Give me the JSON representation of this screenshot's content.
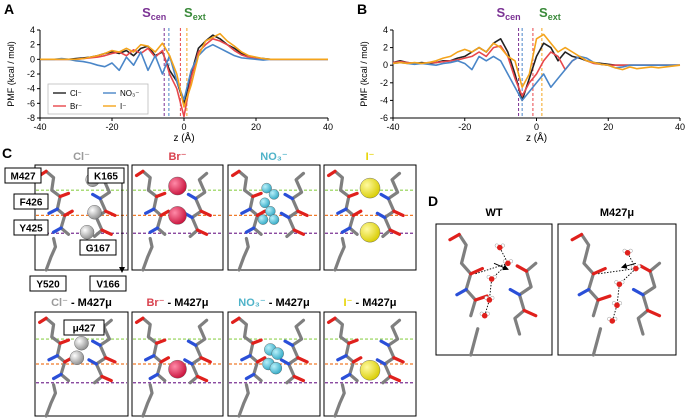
{
  "panel_labels": [
    "A",
    "B",
    "C",
    "D"
  ],
  "chart_data": [
    {
      "type": "line",
      "x": [
        -40,
        -38,
        -36,
        -34,
        -32,
        -30,
        -28,
        -26,
        -24,
        -22,
        -20,
        -18,
        -16,
        -14,
        -12,
        -10,
        -8,
        -6,
        -4,
        -2,
        0,
        2,
        4,
        6,
        8,
        10,
        12,
        14,
        16,
        18,
        20,
        22,
        24,
        26,
        28,
        30,
        32,
        34,
        36,
        38,
        40
      ],
      "xlim": [
        -40,
        40
      ],
      "xticks": [
        -40,
        -20,
        0,
        20,
        40
      ],
      "ylim": [
        -8,
        4
      ],
      "yticks": [
        -8,
        -6,
        -4,
        -2,
        0,
        2,
        4
      ],
      "xlabel": "z (Å)",
      "ylabel": "PMF (kcal / mol)",
      "legend": "lower left",
      "series": [
        {
          "name": "Cl⁻",
          "color": "#222222",
          "values": [
            0,
            0,
            0,
            0,
            0,
            0.1,
            0.2,
            0.3,
            0.5,
            0.8,
            1.0,
            0.8,
            1.2,
            0.5,
            1.5,
            1.8,
            0.5,
            1.0,
            -1.5,
            -3.0,
            -6.0,
            -2.0,
            1.5,
            2.5,
            3.3,
            2.8,
            2.0,
            1.5,
            0.8,
            0.4,
            0.2,
            0.1,
            0,
            0,
            0,
            0,
            0,
            0,
            0,
            0,
            0
          ]
        },
        {
          "name": "Br⁻",
          "color": "#e8474b",
          "values": [
            0,
            0,
            0,
            0,
            0,
            0,
            0.1,
            0.2,
            0.3,
            0.5,
            0.8,
            1.0,
            0.5,
            1.3,
            0.8,
            1.5,
            0.3,
            1.2,
            -2.0,
            -4.0,
            -7.8,
            -2.5,
            1.0,
            2.0,
            2.8,
            2.5,
            2.0,
            1.2,
            0.6,
            0.3,
            0.1,
            0,
            0,
            0,
            0,
            0,
            0,
            0,
            0,
            0,
            0
          ]
        },
        {
          "name": "NO₃⁻",
          "color": "#4a86c8",
          "values": [
            0,
            0,
            0,
            0.1,
            0,
            -0.2,
            -0.3,
            -0.5,
            -0.8,
            -1.0,
            -0.5,
            -1.5,
            0.3,
            -0.8,
            1.0,
            -1.5,
            0.5,
            -2.0,
            0.5,
            -3.0,
            -5.5,
            -1.5,
            0.5,
            1.5,
            2.0,
            1.5,
            1.0,
            0.5,
            0.2,
            0.1,
            0,
            -0.1,
            0,
            0,
            0,
            0,
            0,
            0,
            0,
            0,
            0
          ]
        },
        {
          "name": "I⁻",
          "color": "#f4a41c",
          "values": [
            0,
            0,
            0,
            0,
            0,
            0,
            0.1,
            0.3,
            0.5,
            0.8,
            1.2,
            1.0,
            1.5,
            1.0,
            2.0,
            1.8,
            1.0,
            2.2,
            0.5,
            -2.0,
            -6.5,
            -3.5,
            0.5,
            2.5,
            3.0,
            3.5,
            2.5,
            1.8,
            1.0,
            0.5,
            0.3,
            0.1,
            0,
            0,
            0,
            0,
            0,
            0,
            0,
            0,
            0
          ]
        }
      ],
      "markers": [
        {
          "x": -5.5,
          "color": "#7b3294"
        },
        {
          "x": -4.2,
          "color": "#4a86c8"
        },
        {
          "x": -1,
          "color": "#e8474b"
        },
        {
          "x": 0.8,
          "color": "#f4a41c"
        }
      ],
      "annotations": [
        {
          "text": "S",
          "sub": "cen",
          "color": "#7b3294"
        },
        {
          "text": "S",
          "sub": "ext",
          "color": "#3a8a3a"
        }
      ]
    },
    {
      "type": "line",
      "x": [
        -40,
        -38,
        -36,
        -34,
        -32,
        -30,
        -28,
        -26,
        -24,
        -22,
        -20,
        -18,
        -16,
        -14,
        -12,
        -10,
        -8,
        -6,
        -4,
        -2,
        0,
        2,
        4,
        6,
        8,
        10,
        12,
        14,
        16,
        18,
        20,
        22,
        24,
        26,
        28,
        30,
        32,
        34,
        36,
        38,
        40
      ],
      "xlim": [
        -40,
        40
      ],
      "xticks": [
        -40,
        -20,
        0,
        20,
        40
      ],
      "ylim": [
        -6,
        4
      ],
      "yticks": [
        -6,
        -4,
        -2,
        0,
        2,
        4
      ],
      "xlabel": "z (Å)",
      "ylabel": "PMF (kcal / mol)",
      "series": [
        {
          "color": "#222222",
          "values": [
            0.3,
            0.5,
            0.3,
            0.2,
            0.3,
            0.2,
            0.3,
            0.5,
            0.5,
            0.8,
            1.0,
            1.5,
            2.0,
            1.5,
            2.5,
            3.0,
            1.5,
            -1.0,
            -4.0,
            -1.5,
            1.0,
            2.5,
            2.0,
            0.5,
            1.5,
            1.0,
            0.8,
            0.5,
            0.3,
            0.2,
            0.1,
            0,
            0,
            0,
            0,
            0,
            0,
            0,
            0,
            0,
            0
          ]
        },
        {
          "color": "#e8474b",
          "values": [
            0.3,
            0.4,
            0.3,
            0.2,
            0.2,
            0.3,
            0.3,
            0.4,
            0.5,
            0.6,
            0.8,
            1.0,
            1.5,
            1.0,
            2.0,
            2.2,
            1.0,
            -1.5,
            -3.5,
            -2.0,
            -1.0,
            0.5,
            1.5,
            1.0,
            -0.5,
            0.5,
            1.0,
            0.5,
            0.2,
            0.1,
            0,
            0,
            0,
            0,
            0,
            0,
            0,
            0,
            0,
            0,
            0
          ]
        },
        {
          "color": "#4a86c8",
          "values": [
            0.2,
            0.3,
            0.2,
            0.1,
            0.2,
            0.1,
            0,
            0.2,
            0.3,
            0.5,
            0.2,
            -0.5,
            1.0,
            0.5,
            1.0,
            0.5,
            -1.0,
            -2.5,
            -4.0,
            -3.0,
            -2.0,
            -1.0,
            -2.5,
            -1.5,
            -0.5,
            0.5,
            1.0,
            0.8,
            0.3,
            0.1,
            0,
            -0.3,
            -0.2,
            0,
            0,
            0,
            0,
            0,
            0,
            0,
            0
          ]
        },
        {
          "color": "#f4a41c",
          "values": [
            0.2,
            0.3,
            0.2,
            0.3,
            0.2,
            0.3,
            0.5,
            0.8,
            1.0,
            1.5,
            1.8,
            1.5,
            2.0,
            1.5,
            2.5,
            2.0,
            1.0,
            0.5,
            -2.5,
            -1.0,
            3.0,
            3.5,
            2.5,
            1.5,
            2.0,
            1.5,
            1.0,
            0.5,
            0.3,
            0.1,
            0,
            -0.3,
            -0.5,
            -0.2,
            -0.4,
            -0.3,
            -0.2,
            -0.3,
            -0.2,
            -0.1,
            0
          ]
        }
      ],
      "markers": [
        {
          "x": -5,
          "color": "#7b3294"
        },
        {
          "x": -4,
          "color": "#4a86c8"
        },
        {
          "x": -1,
          "color": "#e8474b"
        },
        {
          "x": 1.5,
          "color": "#f4a41c"
        }
      ],
      "annotations": [
        {
          "text": "S",
          "sub": "cen",
          "color": "#7b3294"
        },
        {
          "text": "S",
          "sub": "ext",
          "color": "#3a8a3a"
        }
      ]
    }
  ],
  "panel_c": {
    "ion_colors": [
      "#9a9a9a",
      "#d9434f",
      "#4fb3c9",
      "#e6d400"
    ],
    "titles": [
      "Cl⁻",
      "Br⁻",
      "NO₃⁻",
      "I⁻"
    ],
    "mutant_titles": [
      {
        "ion": "Cl⁻",
        "suffix": " - M427μ"
      },
      {
        "ion": "Br⁻",
        "suffix": " - M427μ"
      },
      {
        "ion": "NO₃⁻",
        "suffix": " - M427μ"
      },
      {
        "ion": "I⁻",
        "suffix": " - M427μ"
      }
    ],
    "residues": [
      "M427",
      "K165",
      "F426",
      "Y425",
      "G167",
      "Y520",
      "V166"
    ],
    "mutant_residue": "μ427"
  },
  "panel_d": {
    "titles": [
      "WT",
      "M427μ"
    ]
  }
}
